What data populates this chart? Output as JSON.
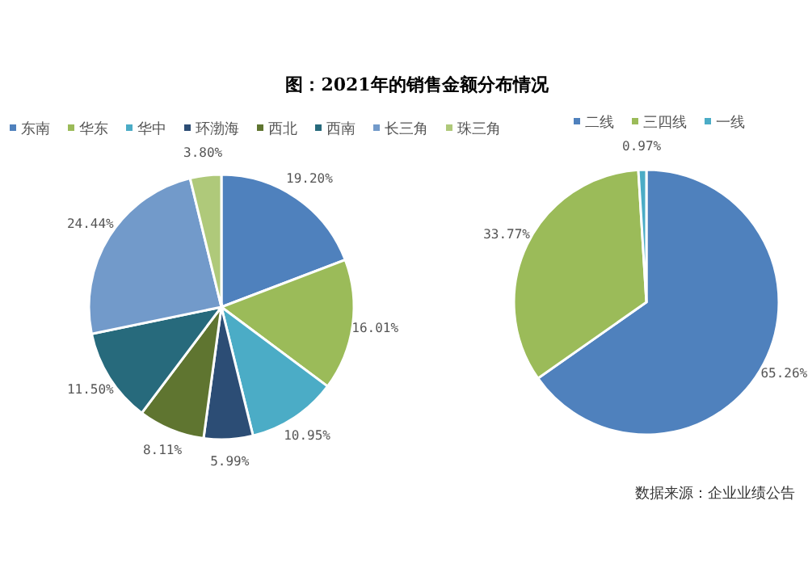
{
  "chart_data": [
    {
      "type": "pie",
      "title": "图：2021年的销售金额分布情况",
      "categories": [
        "东南",
        "华东",
        "华中",
        "环渤海",
        "西北",
        "西南",
        "长三角",
        "珠三角"
      ],
      "values": [
        19.2,
        16.01,
        10.95,
        5.99,
        8.11,
        11.5,
        24.44,
        3.8
      ],
      "colors": [
        "#4f81bd",
        "#9bbb59",
        "#4bacc6",
        "#2c4d75",
        "#5f7530",
        "#276a7c",
        "#729aca",
        "#afc97a"
      ],
      "value_labels": [
        "19.20%",
        "16.01%",
        "10.95%",
        "5.99%",
        "8.11%",
        "11.50%",
        "24.44%",
        "3.80%"
      ],
      "legend": "top"
    },
    {
      "type": "pie",
      "categories": [
        "二线",
        "三四线",
        "一线"
      ],
      "values": [
        65.26,
        33.77,
        0.97
      ],
      "colors": [
        "#4f81bd",
        "#9bbb59",
        "#4bacc6"
      ],
      "value_labels": [
        "65.26%",
        "33.77%",
        "0.97%"
      ],
      "legend": "top",
      "annotations": [
        "数据来源：企业业绩公告"
      ]
    }
  ]
}
